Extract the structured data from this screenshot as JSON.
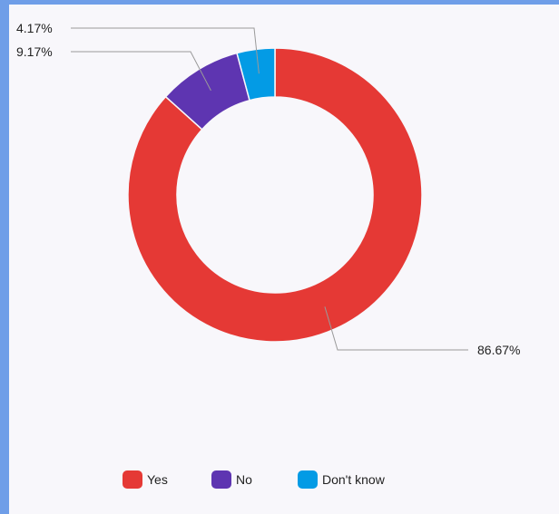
{
  "chart_data": {
    "type": "pie",
    "variant": "donut",
    "categories": [
      "Yes",
      "No",
      "Don't know"
    ],
    "values": [
      86.67,
      9.17,
      4.17
    ],
    "data_labels": [
      "86.67%",
      "9.17%",
      "4.17%"
    ],
    "colors": [
      "#e53935",
      "#5e35b1",
      "#039be5"
    ],
    "legend_position": "bottom"
  }
}
